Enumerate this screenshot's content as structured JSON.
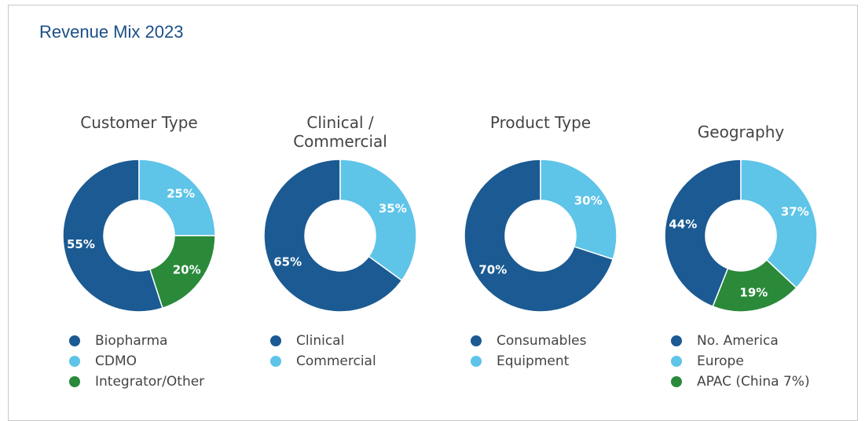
{
  "title": "Revenue Mix 2023",
  "chart_data": [
    {
      "type": "pie",
      "donut": true,
      "title": "Customer Type",
      "categories": [
        "Biopharma",
        "CDMO",
        "Integrator/Other"
      ],
      "values": [
        55,
        25,
        20
      ],
      "value_labels": [
        "55%",
        "25%",
        "20%"
      ],
      "colors": [
        "#1b5a92",
        "#5ec4e8",
        "#2a8a3a"
      ]
    },
    {
      "type": "pie",
      "donut": true,
      "title": "Clinical / Commercial",
      "categories": [
        "Clinical",
        "Commercial"
      ],
      "values": [
        65,
        35
      ],
      "value_labels": [
        "65%",
        "35%"
      ],
      "colors": [
        "#1b5a92",
        "#5ec4e8"
      ]
    },
    {
      "type": "pie",
      "donut": true,
      "title": "Product Type",
      "categories": [
        "Consumables",
        "Equipment"
      ],
      "values": [
        70,
        30
      ],
      "value_labels": [
        "70%",
        "30%"
      ],
      "colors": [
        "#1b5a92",
        "#5ec4e8"
      ]
    },
    {
      "type": "pie",
      "donut": true,
      "title": "Geography",
      "categories": [
        "No. America",
        "Europe",
        "APAC (China 7%)"
      ],
      "values": [
        44,
        37,
        19
      ],
      "value_labels": [
        "44%",
        "37%",
        "19%"
      ],
      "colors": [
        "#1b5a92",
        "#5ec4e8",
        "#2a8a3a"
      ]
    }
  ]
}
